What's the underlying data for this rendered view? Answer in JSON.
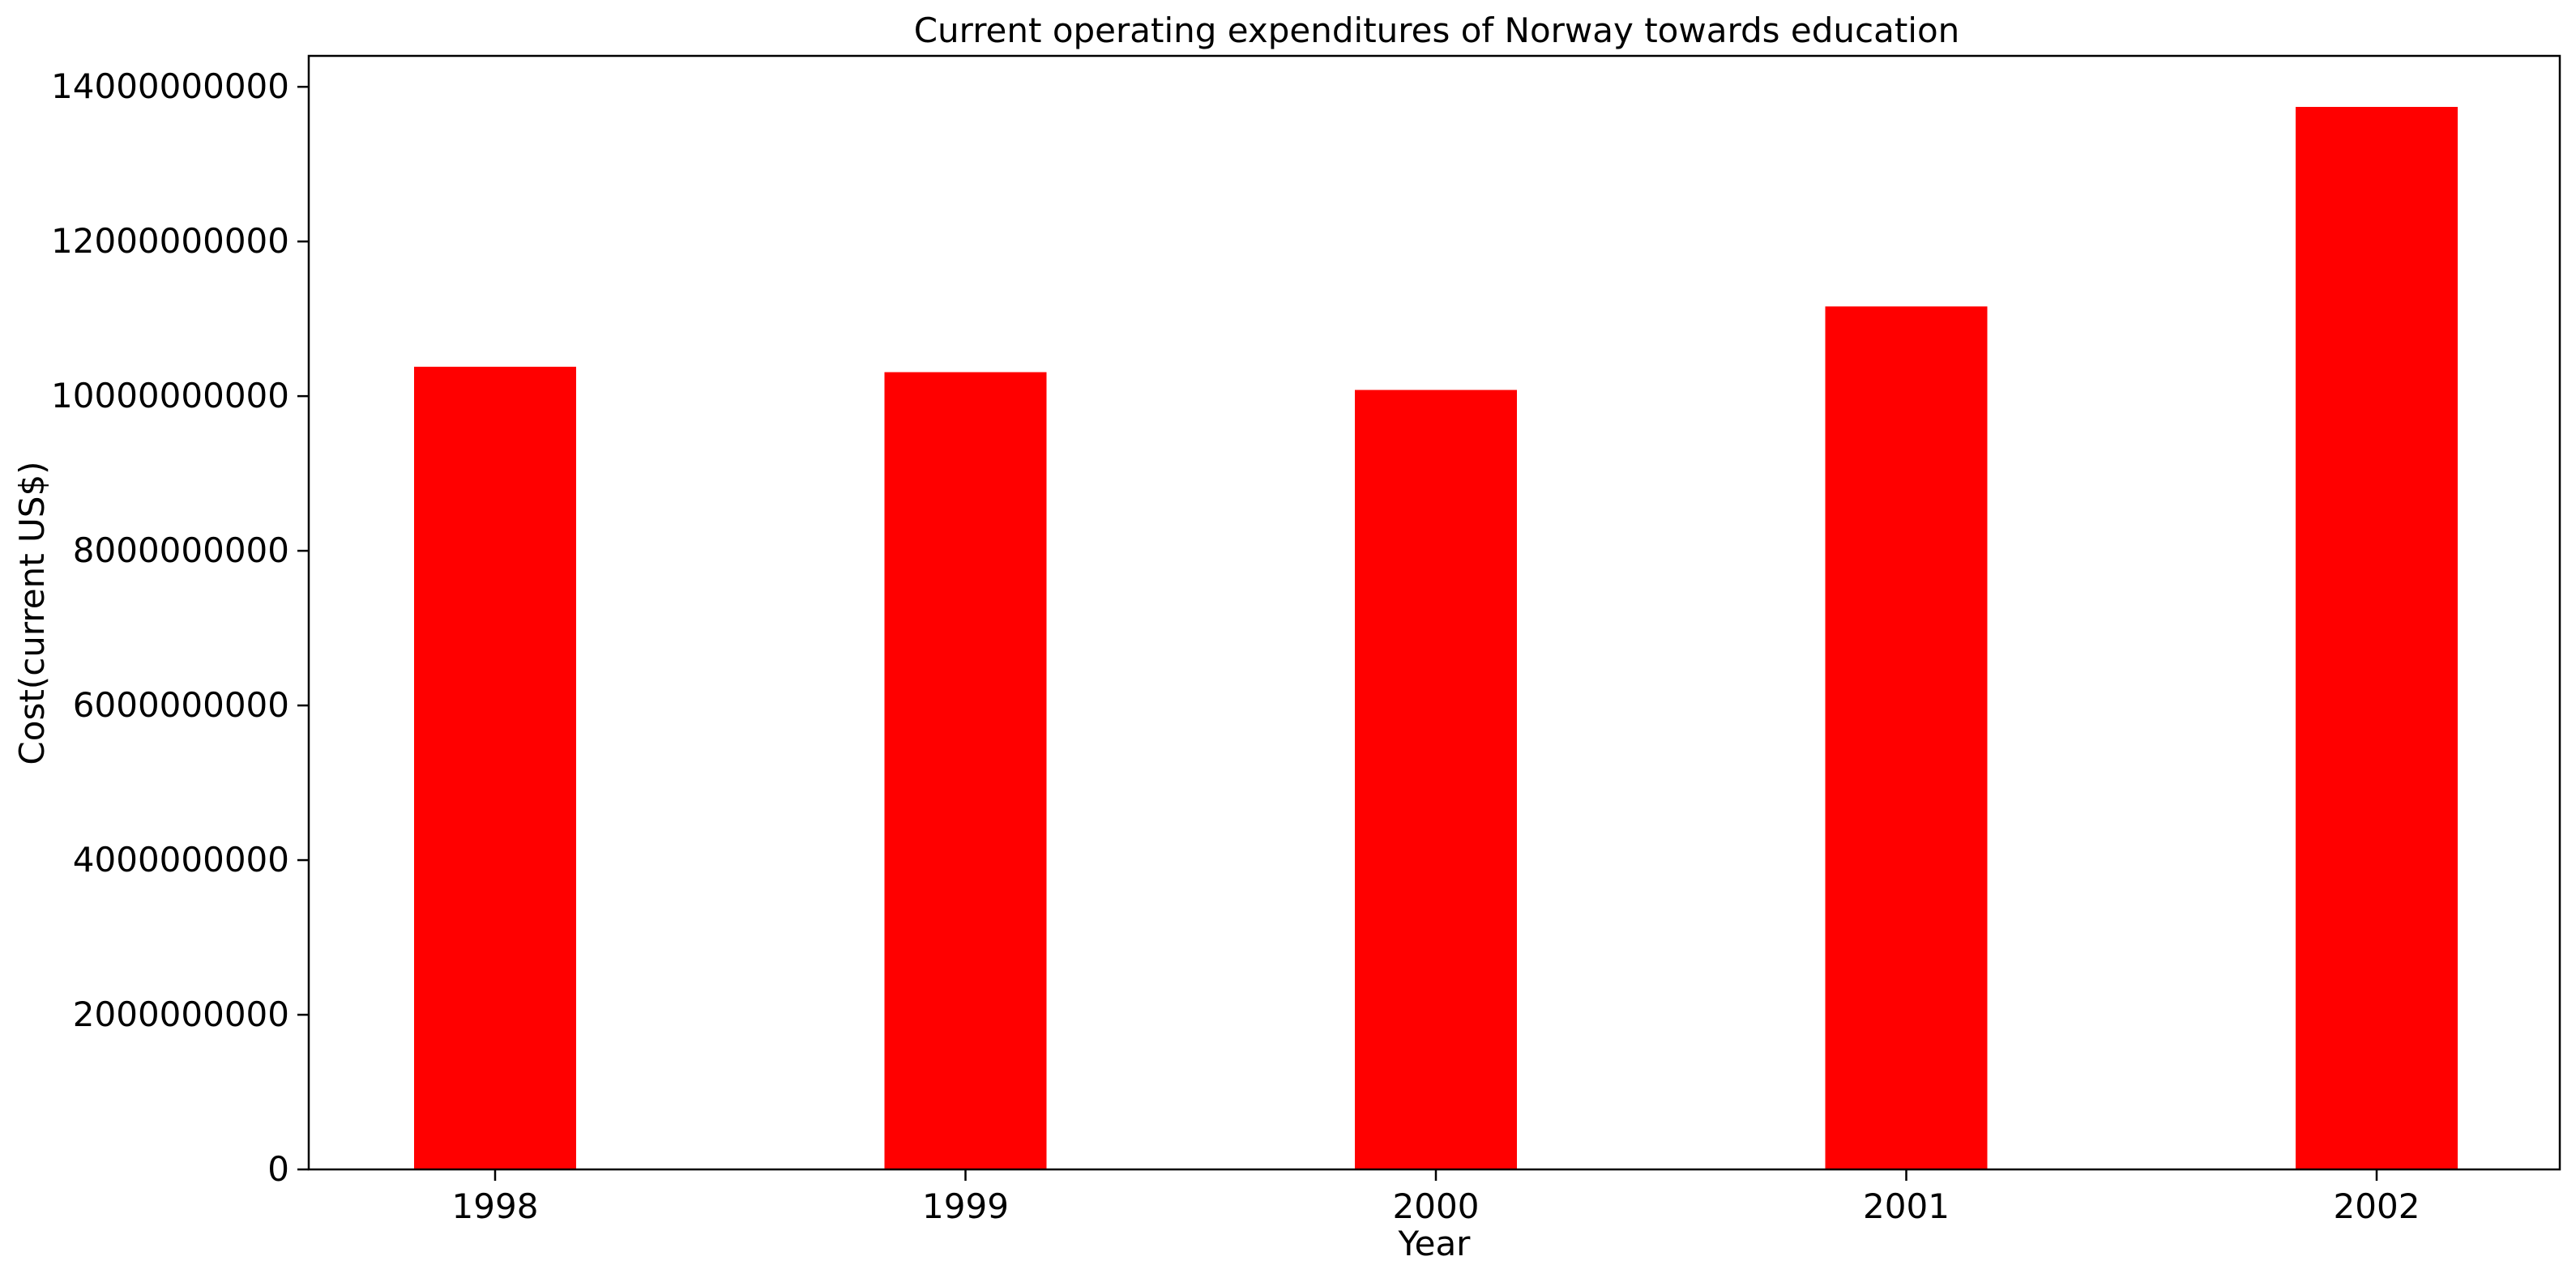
{
  "chart_data": {
    "type": "bar",
    "title": "Current operating expenditures of Norway towards education",
    "xlabel": "Year",
    "ylabel": "Cost(current US$)",
    "categories": [
      "1998",
      "1999",
      "2000",
      "2001",
      "2002"
    ],
    "values": [
      10380000000,
      10310000000,
      10080000000,
      11160000000,
      13740000000
    ],
    "ylim": [
      0,
      14400000000
    ],
    "yticks": [
      0,
      2000000000,
      4000000000,
      6000000000,
      8000000000,
      10000000000,
      12000000000,
      14000000000
    ],
    "ytick_labels": [
      "0",
      "2000000000",
      "4000000000",
      "6000000000",
      "8000000000",
      "10000000000",
      "12000000000",
      "14000000000"
    ],
    "grid": false,
    "legend": "none",
    "colors": {
      "bar": "#ff0000",
      "axes": "#000000",
      "background": "#ffffff"
    }
  }
}
